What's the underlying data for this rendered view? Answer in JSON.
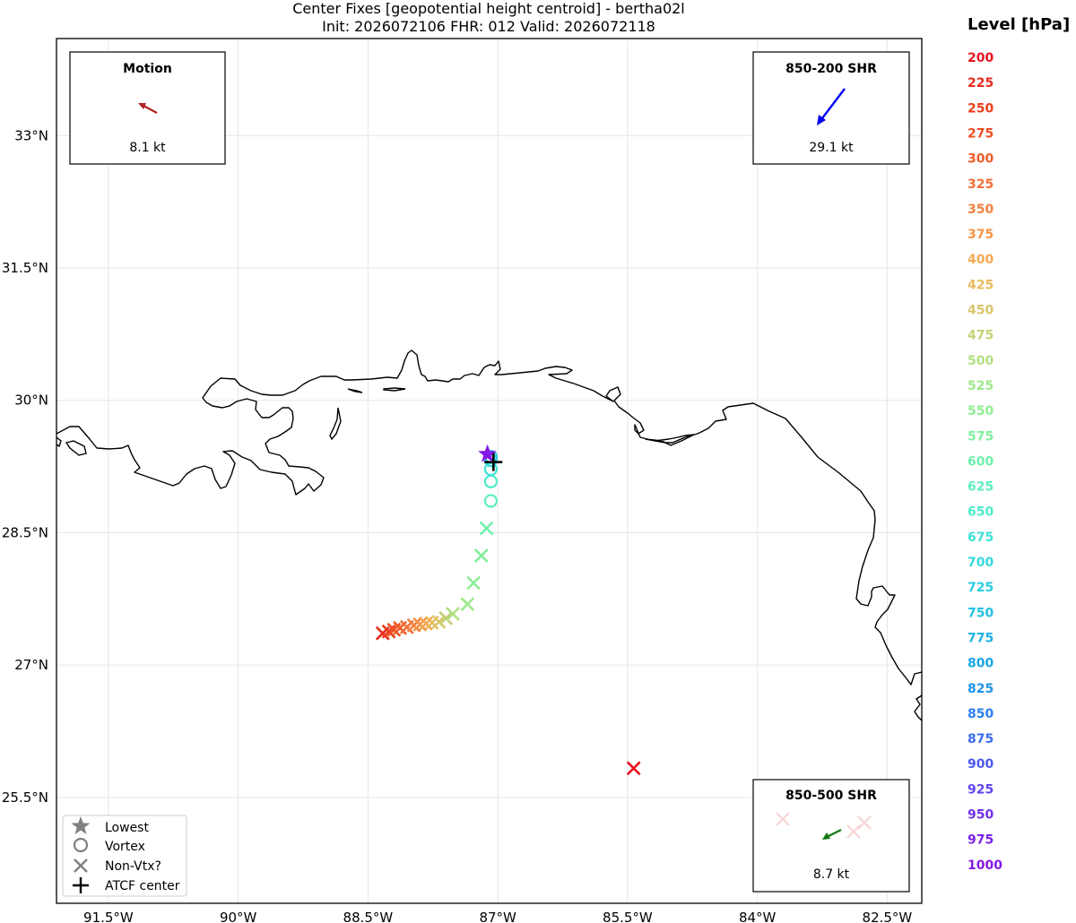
{
  "chart_data": {
    "type": "scatter",
    "title": "Center Fixes [geopotential height centroid] - bertha02l",
    "subtitle": "Init: 2026072106  FHR: 012  Valid: 2026072118",
    "xlim": [
      -92.1,
      -82.1
    ],
    "ylim": [
      24.3,
      34.1
    ],
    "x_ticks": [
      -91.5,
      -90.0,
      -88.5,
      -87.0,
      -85.5,
      -84.0,
      -82.5
    ],
    "x_tick_labels": [
      "91.5°W",
      "90°W",
      "88.5°W",
      "87°W",
      "85.5°W",
      "84°W",
      "82.5°W"
    ],
    "y_ticks": [
      25.5,
      27.0,
      28.5,
      30.0,
      31.5,
      33.0
    ],
    "y_tick_labels": [
      "25.5°N",
      "27°N",
      "28.5°N",
      "30°N",
      "31.5°N",
      "33°N"
    ],
    "grid": true,
    "legend_position": "bottom-left",
    "legend": [
      {
        "marker": "star",
        "label": "Lowest"
      },
      {
        "marker": "circle",
        "label": "Vortex"
      },
      {
        "marker": "x",
        "label": "Non-Vtx?"
      },
      {
        "marker": "plus",
        "label": "ATCF center"
      }
    ],
    "levels_title": "Level [hPa]",
    "levels": [
      {
        "level": "200",
        "color": "#e8141e"
      },
      {
        "level": "225",
        "color": "#ea2a1c"
      },
      {
        "level": "250",
        "color": "#ec3e1c"
      },
      {
        "level": "275",
        "color": "#ee4e20"
      },
      {
        "level": "300",
        "color": "#f05c28"
      },
      {
        "level": "325",
        "color": "#f36e36"
      },
      {
        "level": "350",
        "color": "#f4823f"
      },
      {
        "level": "375",
        "color": "#f59548"
      },
      {
        "level": "400",
        "color": "#f4a852"
      },
      {
        "level": "425",
        "color": "#eaba5e"
      },
      {
        "level": "450",
        "color": "#d9c66a"
      },
      {
        "level": "475",
        "color": "#c4d175"
      },
      {
        "level": "500",
        "color": "#b0df80"
      },
      {
        "level": "525",
        "color": "#9ee88a"
      },
      {
        "level": "550",
        "color": "#8fee94"
      },
      {
        "level": "575",
        "color": "#80f09c"
      },
      {
        "level": "600",
        "color": "#6ff1ac"
      },
      {
        "level": "625",
        "color": "#5ef0bc"
      },
      {
        "level": "650",
        "color": "#4deacb"
      },
      {
        "level": "675",
        "color": "#3ee2d6"
      },
      {
        "level": "700",
        "color": "#33d9dc"
      },
      {
        "level": "725",
        "color": "#2acde0"
      },
      {
        "level": "750",
        "color": "#22c0e2"
      },
      {
        "level": "775",
        "color": "#1cb3e5"
      },
      {
        "level": "800",
        "color": "#16a6e8"
      },
      {
        "level": "825",
        "color": "#1e93ea"
      },
      {
        "level": "850",
        "color": "#2a80ec"
      },
      {
        "level": "875",
        "color": "#3a6cee"
      },
      {
        "level": "900",
        "color": "#4c58ee"
      },
      {
        "level": "925",
        "color": "#5e44ec"
      },
      {
        "level": "950",
        "color": "#7030ea"
      },
      {
        "level": "975",
        "color": "#7c22e8"
      },
      {
        "level": "1000",
        "color": "#8418e4"
      }
    ],
    "fixes": [
      {
        "level": "200",
        "lon": -85.43,
        "lat": 25.83,
        "marker": "x"
      },
      {
        "level": "225",
        "lon": -88.33,
        "lat": 27.36,
        "marker": "x"
      },
      {
        "level": "250",
        "lon": -88.26,
        "lat": 27.38,
        "marker": "x"
      },
      {
        "level": "275",
        "lon": -88.2,
        "lat": 27.4,
        "marker": "x"
      },
      {
        "level": "300",
        "lon": -88.13,
        "lat": 27.42,
        "marker": "x"
      },
      {
        "level": "325",
        "lon": -88.05,
        "lat": 27.43,
        "marker": "x"
      },
      {
        "level": "350",
        "lon": -87.97,
        "lat": 27.45,
        "marker": "x"
      },
      {
        "level": "375",
        "lon": -87.9,
        "lat": 27.46,
        "marker": "x"
      },
      {
        "level": "400",
        "lon": -87.83,
        "lat": 27.47,
        "marker": "x"
      },
      {
        "level": "425",
        "lon": -87.76,
        "lat": 27.48,
        "marker": "x"
      },
      {
        "level": "450",
        "lon": -87.68,
        "lat": 27.49,
        "marker": "x"
      },
      {
        "level": "475",
        "lon": -87.6,
        "lat": 27.53,
        "marker": "x"
      },
      {
        "level": "500",
        "lon": -87.52,
        "lat": 27.58,
        "marker": "x"
      },
      {
        "level": "525",
        "lon": -87.35,
        "lat": 27.69,
        "marker": "x"
      },
      {
        "level": "550",
        "lon": -87.28,
        "lat": 27.93,
        "marker": "x"
      },
      {
        "level": "575",
        "lon": -87.19,
        "lat": 28.24,
        "marker": "x"
      },
      {
        "level": "600",
        "lon": -87.13,
        "lat": 28.55,
        "marker": "x"
      },
      {
        "level": "625",
        "lon": -87.08,
        "lat": 28.86,
        "marker": "circle"
      },
      {
        "level": "650",
        "lon": -87.08,
        "lat": 29.08,
        "marker": "circle"
      },
      {
        "level": "675",
        "lon": -87.08,
        "lat": 29.22,
        "marker": "circle"
      },
      {
        "level": "700",
        "lon": -87.08,
        "lat": 29.32,
        "marker": "circle"
      },
      {
        "level": "725",
        "lon": -87.08,
        "lat": 29.36,
        "marker": "circle"
      },
      {
        "level": "1000",
        "lon": -87.12,
        "lat": 29.39,
        "marker": "star"
      }
    ],
    "atcf_center": {
      "lon": -87.05,
      "lat": 29.3
    },
    "insets": {
      "motion": {
        "title": "Motion",
        "value": "8.1 kt",
        "color": "#b22222",
        "direction": "toward northwest"
      },
      "shr_850_200": {
        "title": "850-200 SHR",
        "value": "29.1 kt",
        "color": "#0000ee",
        "direction": "toward southwest"
      },
      "shr_850_500": {
        "title": "850-500 SHR",
        "value": "8.7 kt",
        "color": "#117711",
        "direction": "toward southwest"
      }
    }
  }
}
